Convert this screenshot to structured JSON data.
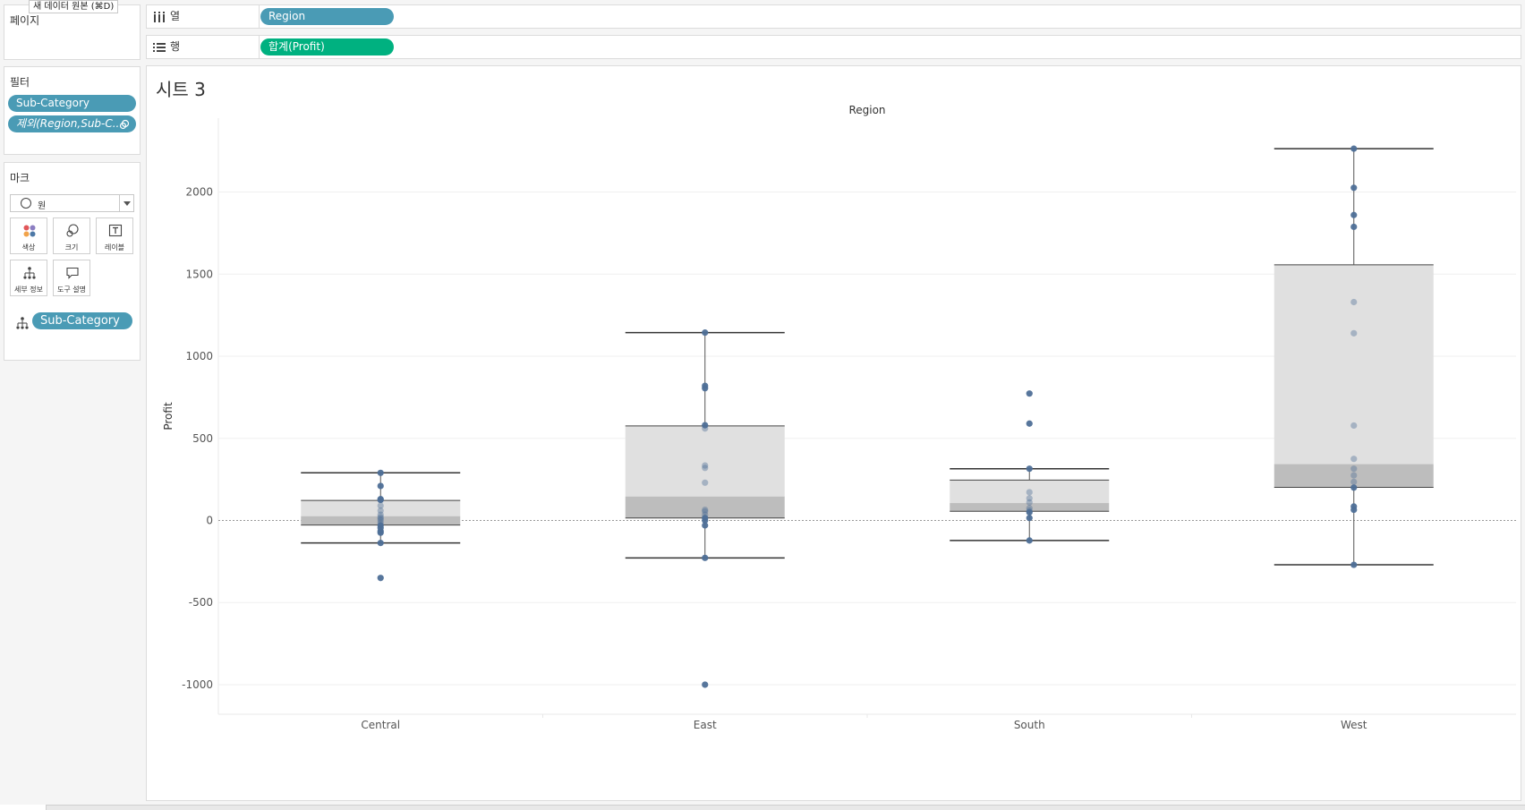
{
  "tooltip": "새 데이터 원본 (⌘D)",
  "pages_panel": {
    "title": "페이지"
  },
  "filters_panel": {
    "title": "필터",
    "filters": [
      "Sub-Category",
      "제외(Region,Sub-C.."
    ]
  },
  "marks_panel": {
    "title": "마크",
    "mark_type": "원",
    "buttons": [
      {
        "label": "색상",
        "icon": "color-icon"
      },
      {
        "label": "크기",
        "icon": "size-icon"
      },
      {
        "label": "레이블",
        "icon": "label-icon"
      },
      {
        "label": "세부 정보",
        "icon": "detail-icon"
      },
      {
        "label": "도구 설명",
        "icon": "tooltip-icon"
      }
    ],
    "detail_field": "Sub-Category"
  },
  "shelves": {
    "columns": {
      "label": "열",
      "pill": "Region"
    },
    "rows": {
      "label": "행",
      "pill": "합계(Profit)"
    }
  },
  "sheet": {
    "title": "시트 3"
  },
  "colors": {
    "dim_pill": "#4a9bb5",
    "measure_pill": "#00b180",
    "point": "#4e6f97",
    "box_upper": "#e0e0e0",
    "box_lower": "#bdbdbd"
  },
  "chart_data": {
    "type": "box-and-scatter",
    "title": "Region",
    "xlabel": "",
    "ylabel": "Profit",
    "ylim": [
      -1180,
      2450
    ],
    "yticks": [
      2000,
      1500,
      1000,
      500,
      0,
      -500,
      -1000
    ],
    "grid": true,
    "zero_line": true,
    "categories": [
      "Central",
      "East",
      "South",
      "West"
    ],
    "boxes": [
      {
        "category": "Central",
        "whisker_low": -137,
        "q1": -28,
        "median": 26,
        "q3": 122,
        "whisker_high": 290
      },
      {
        "category": "East",
        "whisker_low": -228,
        "q1": 15,
        "median": 146,
        "q3": 576,
        "whisker_high": 1144
      },
      {
        "category": "South",
        "whisker_low": -122,
        "q1": 56,
        "median": 106,
        "q3": 246,
        "whisker_high": 315
      },
      {
        "category": "West",
        "whisker_low": -270,
        "q1": 202,
        "median": 343,
        "q3": 1557,
        "whisker_high": 2264
      }
    ],
    "points": [
      {
        "category": "Central",
        "values": [
          290,
          210,
          130,
          125,
          90,
          60,
          35,
          20,
          10,
          0,
          -15,
          -30,
          -45,
          -65,
          -75,
          -137,
          -350
        ]
      },
      {
        "category": "East",
        "values": [
          1144,
          820,
          805,
          580,
          560,
          335,
          320,
          230,
          65,
          55,
          35,
          15,
          0,
          -30,
          -228,
          -1000
        ]
      },
      {
        "category": "South",
        "values": [
          773,
          590,
          315,
          172,
          135,
          110,
          75,
          60,
          50,
          15,
          -122
        ]
      },
      {
        "category": "West",
        "values": [
          2264,
          2026,
          1860,
          1788,
          1330,
          1140,
          578,
          375,
          315,
          275,
          235,
          200,
          85,
          65,
          -270
        ]
      }
    ]
  }
}
